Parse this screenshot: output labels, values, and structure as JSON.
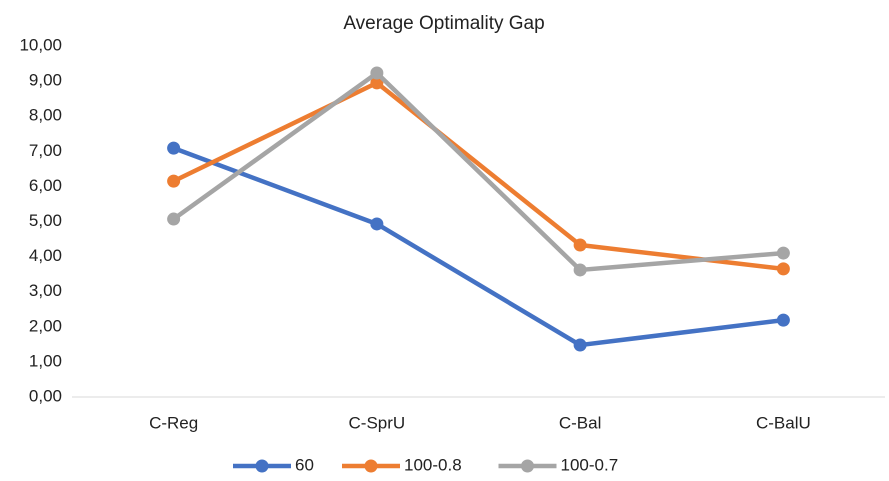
{
  "chart_data": {
    "type": "line",
    "title": "Average Optimality Gap",
    "categories": [
      "C-Reg",
      "C-SprU",
      "C-Bal",
      "C-BalU"
    ],
    "series": [
      {
        "name": "60",
        "color": "#4472c4",
        "values": [
          7.09,
          4.93,
          1.48,
          2.19
        ]
      },
      {
        "name": "100-0.8",
        "color": "#ed7d31",
        "values": [
          6.15,
          8.95,
          4.33,
          3.65
        ]
      },
      {
        "name": "100-0.7",
        "color": "#a5a5a5",
        "values": [
          5.07,
          9.23,
          3.62,
          4.1
        ]
      }
    ],
    "ylim": [
      0,
      10
    ],
    "yticks": [
      {
        "value": 0,
        "label": "0,00"
      },
      {
        "value": 1,
        "label": "1,00"
      },
      {
        "value": 2,
        "label": "2,00"
      },
      {
        "value": 3,
        "label": "3,00"
      },
      {
        "value": 4,
        "label": "4,00"
      },
      {
        "value": 5,
        "label": "5,00"
      },
      {
        "value": 6,
        "label": "6,00"
      },
      {
        "value": 7,
        "label": "7,00"
      },
      {
        "value": 8,
        "label": "8,00"
      },
      {
        "value": 9,
        "label": "9,00"
      },
      {
        "value": 10,
        "label": "10,00"
      }
    ],
    "grid": false,
    "legend": "bottom"
  }
}
